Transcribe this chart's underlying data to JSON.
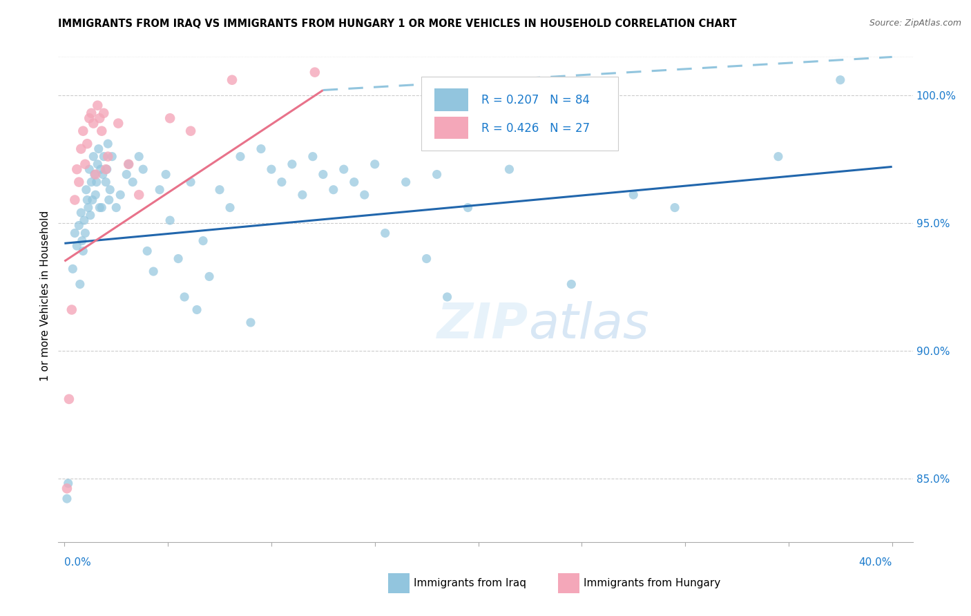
{
  "title": "IMMIGRANTS FROM IRAQ VS IMMIGRANTS FROM HUNGARY 1 OR MORE VEHICLES IN HOUSEHOLD CORRELATION CHART",
  "source": "Source: ZipAtlas.com",
  "ylabel": "1 or more Vehicles in Household",
  "iraq_color": "#92c5de",
  "hungary_color": "#f4a7b9",
  "iraq_line_color": "#2166ac",
  "hungary_line_color": "#e8728a",
  "extend_line_color": "#92c5de",
  "legend_color": "#1a7acc",
  "watermark_color": "#d6eaf8",
  "y_min": 82.5,
  "y_max": 101.8,
  "x_min": -0.3,
  "x_max": 41.0,
  "iraq_scatter": [
    [
      0.12,
      84.2
    ],
    [
      0.18,
      84.8
    ],
    [
      0.4,
      93.2
    ],
    [
      0.5,
      94.6
    ],
    [
      0.6,
      94.1
    ],
    [
      0.7,
      94.9
    ],
    [
      0.75,
      92.6
    ],
    [
      0.8,
      95.4
    ],
    [
      0.85,
      94.3
    ],
    [
      0.9,
      93.9
    ],
    [
      0.95,
      95.1
    ],
    [
      1.0,
      94.6
    ],
    [
      1.05,
      96.3
    ],
    [
      1.1,
      95.9
    ],
    [
      1.15,
      95.6
    ],
    [
      1.2,
      97.1
    ],
    [
      1.25,
      95.3
    ],
    [
      1.3,
      96.6
    ],
    [
      1.35,
      95.9
    ],
    [
      1.4,
      97.6
    ],
    [
      1.45,
      96.9
    ],
    [
      1.5,
      96.1
    ],
    [
      1.55,
      96.6
    ],
    [
      1.6,
      97.3
    ],
    [
      1.65,
      97.9
    ],
    [
      1.7,
      95.6
    ],
    [
      1.75,
      97.1
    ],
    [
      1.8,
      95.6
    ],
    [
      1.85,
      96.9
    ],
    [
      1.9,
      97.6
    ],
    [
      2.0,
      96.6
    ],
    [
      2.05,
      97.1
    ],
    [
      2.1,
      98.1
    ],
    [
      2.15,
      95.9
    ],
    [
      2.2,
      96.3
    ],
    [
      2.3,
      97.6
    ],
    [
      2.5,
      95.6
    ],
    [
      2.7,
      96.1
    ],
    [
      3.0,
      96.9
    ],
    [
      3.1,
      97.3
    ],
    [
      3.3,
      96.6
    ],
    [
      3.6,
      97.6
    ],
    [
      3.8,
      97.1
    ],
    [
      4.0,
      93.9
    ],
    [
      4.3,
      93.1
    ],
    [
      4.6,
      96.3
    ],
    [
      4.9,
      96.9
    ],
    [
      5.1,
      95.1
    ],
    [
      5.5,
      93.6
    ],
    [
      5.8,
      92.1
    ],
    [
      6.1,
      96.6
    ],
    [
      6.4,
      91.6
    ],
    [
      6.7,
      94.3
    ],
    [
      7.0,
      92.9
    ],
    [
      7.5,
      96.3
    ],
    [
      8.0,
      95.6
    ],
    [
      8.5,
      97.6
    ],
    [
      9.0,
      91.1
    ],
    [
      9.5,
      97.9
    ],
    [
      10.0,
      97.1
    ],
    [
      10.5,
      96.6
    ],
    [
      11.0,
      97.3
    ],
    [
      11.5,
      96.1
    ],
    [
      12.0,
      97.6
    ],
    [
      12.5,
      96.9
    ],
    [
      13.0,
      96.3
    ],
    [
      13.5,
      97.1
    ],
    [
      14.0,
      96.6
    ],
    [
      14.5,
      96.1
    ],
    [
      15.0,
      97.3
    ],
    [
      15.5,
      94.6
    ],
    [
      16.5,
      96.6
    ],
    [
      17.5,
      93.6
    ],
    [
      18.0,
      96.9
    ],
    [
      18.5,
      92.1
    ],
    [
      19.5,
      95.6
    ],
    [
      21.5,
      97.1
    ],
    [
      24.5,
      92.6
    ],
    [
      27.5,
      96.1
    ],
    [
      29.5,
      95.6
    ],
    [
      34.5,
      97.6
    ],
    [
      37.5,
      100.6
    ]
  ],
  "hungary_scatter": [
    [
      0.12,
      84.6
    ],
    [
      0.22,
      88.1
    ],
    [
      0.35,
      91.6
    ],
    [
      0.5,
      95.9
    ],
    [
      0.6,
      97.1
    ],
    [
      0.7,
      96.6
    ],
    [
      0.8,
      97.9
    ],
    [
      0.9,
      98.6
    ],
    [
      1.0,
      97.3
    ],
    [
      1.1,
      98.1
    ],
    [
      1.2,
      99.1
    ],
    [
      1.3,
      99.3
    ],
    [
      1.4,
      98.9
    ],
    [
      1.5,
      96.9
    ],
    [
      1.6,
      99.6
    ],
    [
      1.7,
      99.1
    ],
    [
      1.8,
      98.6
    ],
    [
      1.9,
      99.3
    ],
    [
      2.0,
      97.1
    ],
    [
      2.1,
      97.6
    ],
    [
      2.6,
      98.9
    ],
    [
      3.1,
      97.3
    ],
    [
      3.6,
      96.1
    ],
    [
      5.1,
      99.1
    ],
    [
      6.1,
      98.6
    ],
    [
      8.1,
      100.6
    ],
    [
      12.1,
      100.9
    ]
  ],
  "iraq_trend_x": [
    0,
    40
  ],
  "iraq_trend_y": [
    94.2,
    97.2
  ],
  "hungary_trend_x": [
    0,
    12.5
  ],
  "hungary_trend_y": [
    93.5,
    100.2
  ],
  "extend_trend_x": [
    12.5,
    40
  ],
  "extend_trend_y": [
    100.2,
    101.5
  ]
}
